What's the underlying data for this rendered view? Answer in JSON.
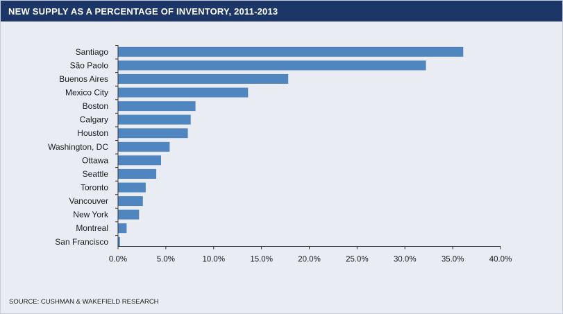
{
  "chart_data": {
    "type": "bar",
    "orientation": "horizontal",
    "title": "NEW SUPPLY AS A PERCENTAGE OF INVENTORY, 2011-2013",
    "categories": [
      "Santiago",
      "São Paolo",
      "Buenos Aires",
      "Mexico City",
      "Boston",
      "Calgary",
      "Houston",
      "Washington, DC",
      "Ottawa",
      "Seattle",
      "Toronto",
      "Vancouver",
      "New York",
      "Montreal",
      "San Francisco"
    ],
    "values": [
      36.1,
      32.2,
      17.8,
      13.6,
      8.1,
      7.6,
      7.3,
      5.4,
      4.5,
      4.0,
      2.9,
      2.6,
      2.2,
      0.9,
      0.2
    ],
    "xlim": [
      0,
      40
    ],
    "xticks": [
      "0.0%",
      "5.0%",
      "10.0%",
      "15.0%",
      "20.0%",
      "25.0%",
      "30.0%",
      "35.0%",
      "40.0%"
    ],
    "grid": false,
    "bar_color": "#4f86c0"
  },
  "source": "SOURCE: CUSHMAN & WAKEFIELD RESEARCH",
  "colors": {
    "title_bar": "#1c3767",
    "background": "#e9edf3",
    "axis": "#333333"
  }
}
